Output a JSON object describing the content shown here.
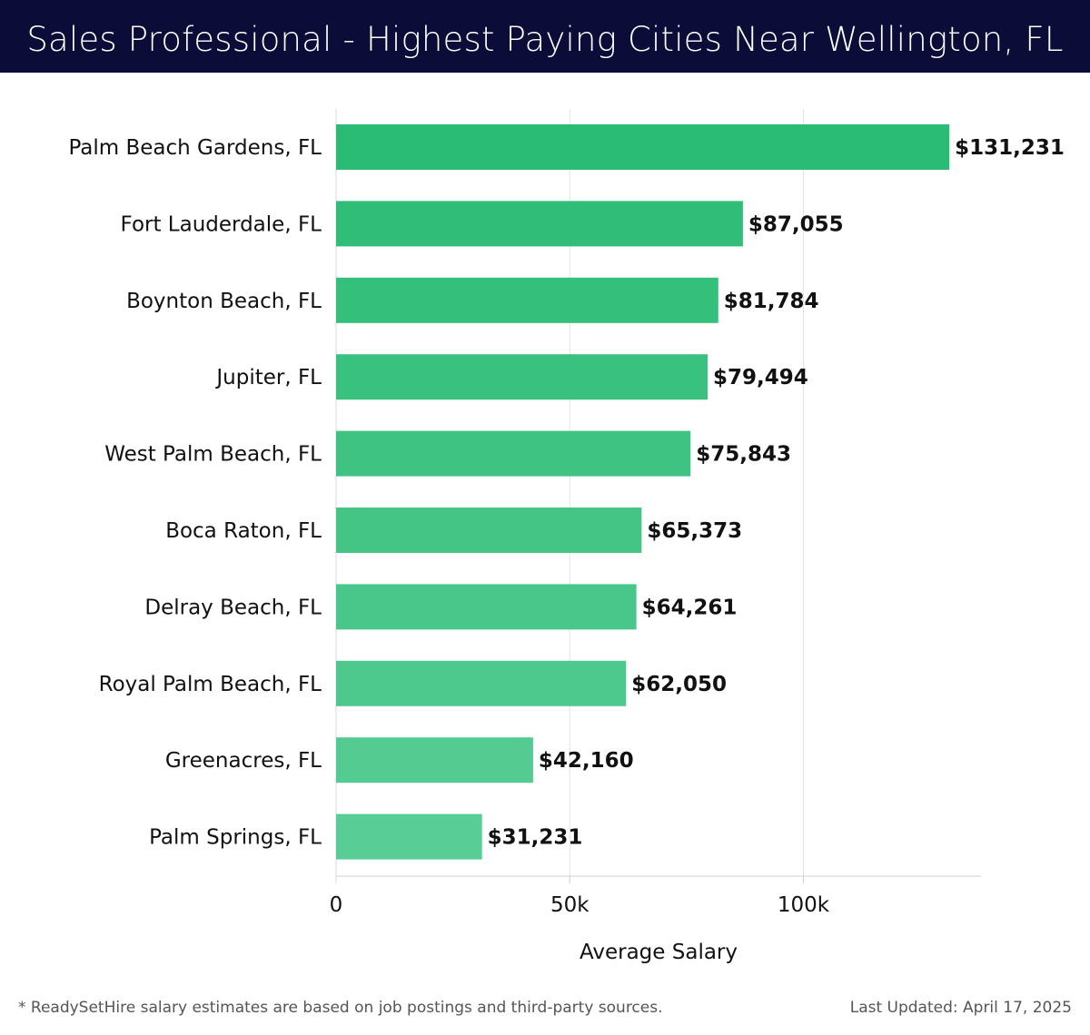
{
  "header": {
    "title": "Sales Professional - Highest Paying Cities Near Wellington, FL"
  },
  "chart_data": {
    "type": "bar",
    "orientation": "horizontal",
    "categories": [
      "Palm Beach Gardens, FL",
      "Fort Lauderdale, FL",
      "Boynton Beach, FL",
      "Jupiter, FL",
      "West Palm Beach, FL",
      "Boca Raton, FL",
      "Delray Beach, FL",
      "Royal Palm Beach, FL",
      "Greenacres, FL",
      "Palm Springs, FL"
    ],
    "values": [
      131231,
      87055,
      81784,
      79494,
      75843,
      65373,
      64261,
      62050,
      42160,
      31231
    ],
    "value_labels": [
      "$131,231",
      "$87,055",
      "$81,784",
      "$79,494",
      "$75,843",
      "$65,373",
      "$64,261",
      "$62,050",
      "$42,160",
      "$31,231"
    ],
    "xlabel": "Average Salary",
    "ylabel": "",
    "xlim": [
      0,
      138000
    ],
    "xticks": [
      0,
      50000,
      100000
    ],
    "xtick_labels": [
      "0",
      "50k",
      "100k"
    ],
    "grid": true,
    "bar_color_top": "#2abb74",
    "bar_color_bottom": "#58cd95"
  },
  "footer": {
    "note": "* ReadySetHire salary estimates are based on job postings and third-party sources.",
    "updated": "Last Updated: April 17, 2025"
  }
}
